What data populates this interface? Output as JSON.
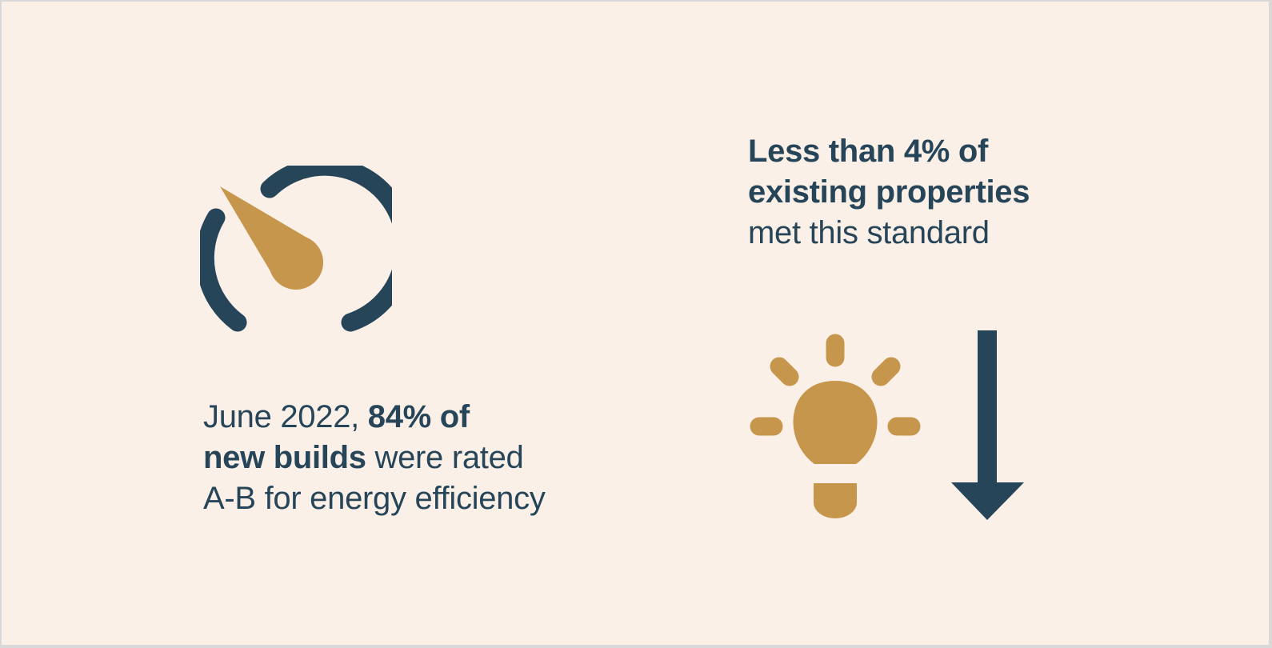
{
  "left_stat": {
    "line1_regular": "June 2022, ",
    "line1_bold": "84% of",
    "line2_bold": "new builds",
    "line2_regular": " were rated",
    "line3_regular": "A-B for energy efficiency"
  },
  "right_stat": {
    "line1_bold": "Less than 4% of",
    "line2_bold": "existing properties",
    "line3_regular": "met this standard"
  },
  "icons": {
    "gauge": "speedometer-icon",
    "bulb": "lightbulb-icon",
    "arrow": "arrow-down-icon"
  },
  "colors": {
    "background": "#fbf0e7",
    "navy": "#264559",
    "gold": "#c5964b"
  }
}
